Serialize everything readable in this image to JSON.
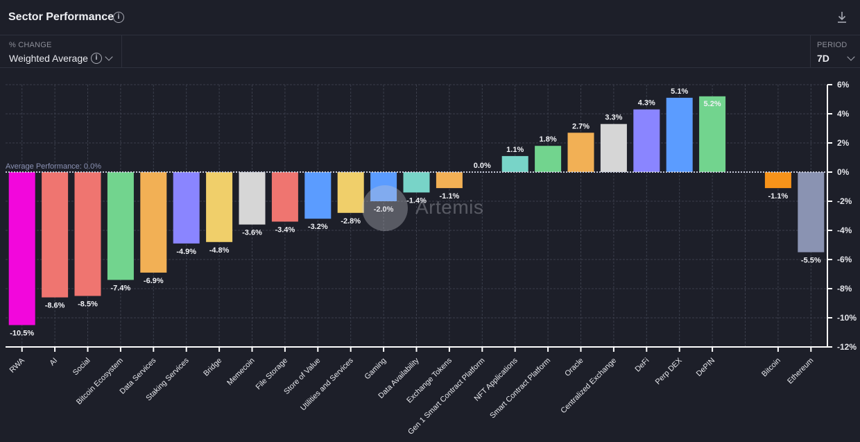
{
  "header": {
    "title": "Sector Performance",
    "info_icon": "info-icon",
    "download_icon": "download-icon"
  },
  "controls": {
    "change": {
      "label": "% CHANGE",
      "value": "Weighted Average"
    },
    "period": {
      "label": "PERIOD",
      "value": "7D"
    }
  },
  "watermark": {
    "text": "Artemis"
  },
  "chart_data": {
    "type": "bar",
    "title": "Sector Performance",
    "xlabel": "",
    "ylabel": "",
    "ylim": [
      -12,
      6
    ],
    "yticks": [
      6,
      4,
      2,
      0,
      -2,
      -4,
      -6,
      -8,
      -10,
      -12
    ],
    "ytick_labels": [
      "6%",
      "4%",
      "2%",
      "0%",
      "-2%",
      "-4%",
      "-6%",
      "-8%",
      "-10%",
      "-12%"
    ],
    "y_axis_position": "right",
    "grid": true,
    "reference_line": {
      "value": 0.0,
      "label": "Average Performance: 0.0%"
    },
    "categories": [
      "RWA",
      "AI",
      "Social",
      "Bitcoin Ecosystem",
      "Data Services",
      "Staking Services",
      "Bridge",
      "Memecoin",
      "File Storage",
      "Store of Value",
      "Utilities and Services",
      "Gaming",
      "Data Availability",
      "Exchange Tokens",
      "Gen 1 Smart Contract Platform",
      "NFT Applications",
      "Smart Contract Platform",
      "Oracle",
      "Centralized Exchange",
      "DeFi",
      "Perp DEX",
      "DePIN",
      "",
      "Bitcoin",
      "Ethereum"
    ],
    "values": [
      -10.5,
      -8.6,
      -8.5,
      -7.4,
      -6.9,
      -4.9,
      -4.8,
      -3.6,
      -3.4,
      -3.2,
      -2.8,
      -2.0,
      -1.4,
      -1.1,
      0.0,
      1.1,
      1.8,
      2.7,
      3.3,
      4.3,
      5.1,
      5.2,
      null,
      -1.1,
      -5.5
    ],
    "labels": [
      "-10.5%",
      "-8.6%",
      "-8.5%",
      "-7.4%",
      "-6.9%",
      "-4.9%",
      "-4.8%",
      "-3.6%",
      "-3.4%",
      "-3.2%",
      "-2.8%",
      "-2.0%",
      "-1.4%",
      "-1.1%",
      "0.0%",
      "1.1%",
      "1.8%",
      "2.7%",
      "3.3%",
      "4.3%",
      "5.1%",
      "5.2%",
      "",
      "-1.1%",
      "-5.5%"
    ],
    "colors": [
      "#f207dc",
      "#ef7570",
      "#ef7570",
      "#72d48e",
      "#f2b055",
      "#8a85ff",
      "#f0cf6a",
      "#d6d6d6",
      "#ef7570",
      "#5b9cff",
      "#f0cf6a",
      "#5b9cff",
      "#78d4c8",
      "#f2b055",
      "#72d48e",
      "#78d4c8",
      "#72d48e",
      "#f2b055",
      "#d6d6d6",
      "#8a85ff",
      "#5b9cff",
      "#72d48e",
      "#000000",
      "#f7931a",
      "#8a93b2"
    ]
  }
}
